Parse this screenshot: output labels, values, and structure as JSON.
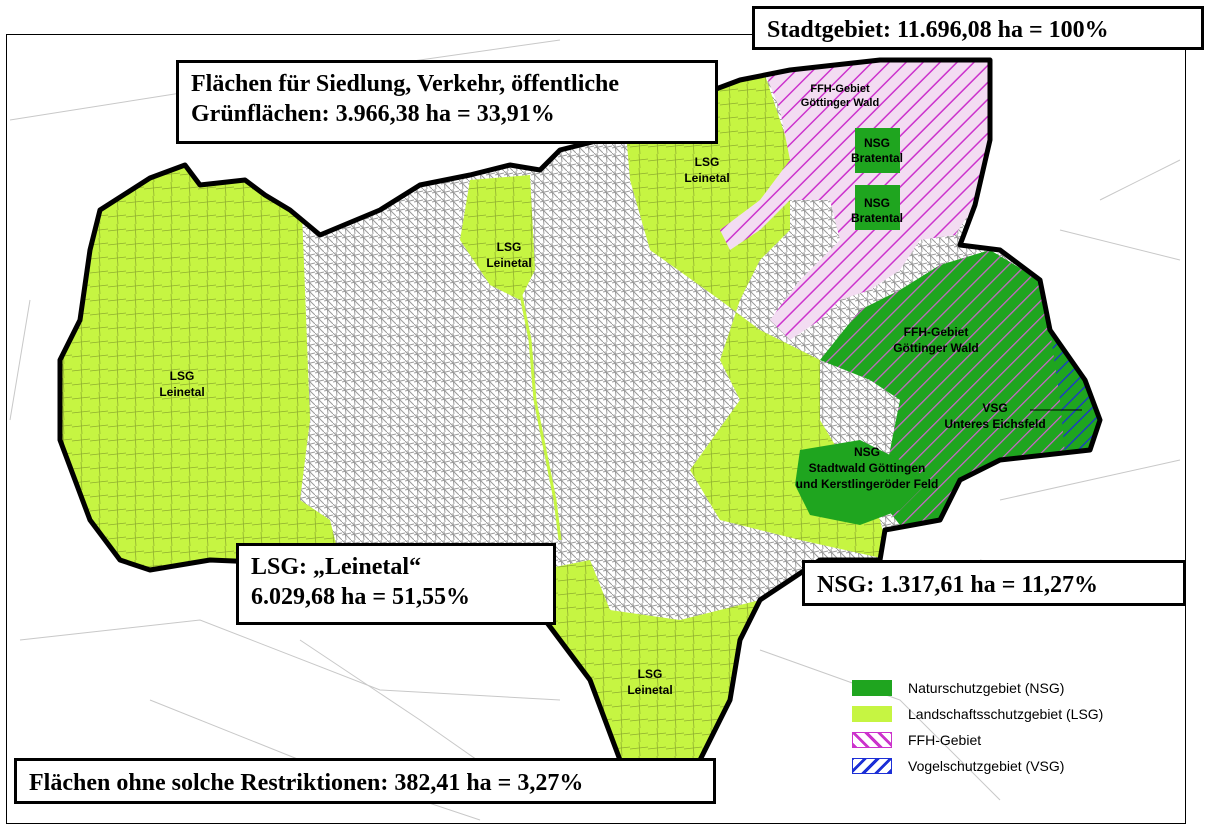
{
  "callouts": {
    "city_area": "Stadtgebiet: 11.696,08 ha = 100%",
    "settlement_line1": "Flächen für Siedlung, Verkehr, öffentliche",
    "settlement_line2": "Grünflächen: 3.966,38 ha = 33,91%",
    "lsg_line1": "LSG: „Leinetal“",
    "lsg_line2": "6.029,68 ha = 51,55%",
    "nsg": "NSG: 1.317,61 ha = 11,27%",
    "unrestricted": "Flächen ohne solche Restriktionen:  382,41 ha = 3,27%"
  },
  "map_labels": {
    "ffh_north_1": "FFH-Gebiet",
    "ffh_north_2": "Göttinger Wald",
    "nsg_bratental_a1": "NSG",
    "nsg_bratental_a2": "Bratental",
    "nsg_bratental_b1": "NSG",
    "nsg_bratental_b2": "Bratental",
    "lsg_ne_1": "LSG",
    "lsg_ne_2": "Leinetal",
    "lsg_center_1": "LSG",
    "lsg_center_2": "Leinetal",
    "lsg_west_1": "LSG",
    "lsg_west_2": "Leinetal",
    "lsg_south_1": "LSG",
    "lsg_south_2": "Leinetal",
    "ffh_east_1": "FFH-Gebiet",
    "ffh_east_2": "Göttinger Wald",
    "vsg_1": "VSG",
    "vsg_2": "Unteres Eichsfeld",
    "nsg_stadtwald_1": "NSG",
    "nsg_stadtwald_2": "Stadtwald Göttingen",
    "nsg_stadtwald_3": "und Kerstlingeröder Feld"
  },
  "legend": {
    "items": [
      {
        "label": "Naturschutzgebiet (NSG)",
        "color": "#1fa51f",
        "pattern": "solid"
      },
      {
        "label": "Landschaftsschutzgebiet (LSG)",
        "color": "#c6f542",
        "pattern": "solid"
      },
      {
        "label": "FFH-Gebiet",
        "color": "#cc33cc",
        "pattern": "hatch-magenta"
      },
      {
        "label": "Vogelschutzgebiet (VSG)",
        "color": "#1c2fd6",
        "pattern": "hatch-blue"
      }
    ]
  },
  "colors": {
    "nsg": "#1fa51f",
    "lsg": "#c6f542",
    "ffh": "#cc33cc",
    "vsg": "#1c2fd6",
    "roads": "#9a9a9a",
    "boundary": "#000000"
  }
}
